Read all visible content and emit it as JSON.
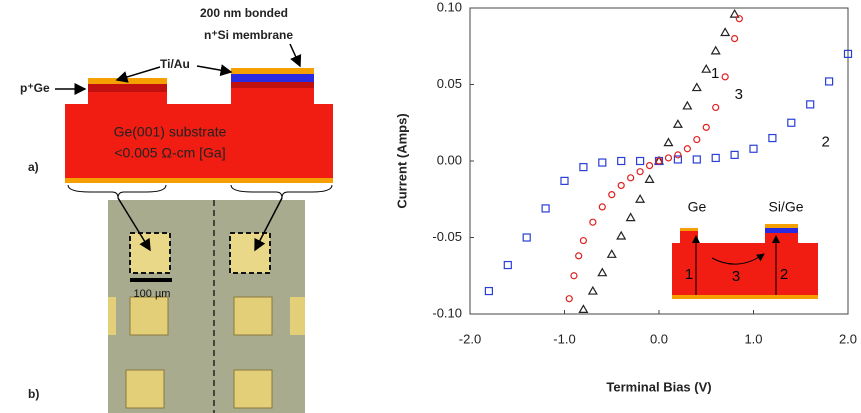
{
  "diagram": {
    "membrane_label": [
      "200 nm bonded",
      "n⁺Si membrane"
    ],
    "metal_label": "Ti/Au",
    "ge_label": "p⁺Ge",
    "substrate_label": [
      "Ge(001) substrate",
      "<0.005 Ω-cm [Ga]"
    ],
    "panel_a": "a)",
    "panel_b": "b)",
    "scale_bar": "100 µm"
  },
  "chart_data": {
    "type": "scatter",
    "xlabel": "Terminal Bias (V)",
    "ylabel": "Current (Amps)",
    "xlim": [
      -2.0,
      2.0
    ],
    "ylim": [
      -0.1,
      0.1
    ],
    "xticks": [
      {
        "value": -2.0,
        "label": "-2.0"
      },
      {
        "value": -1.0,
        "label": "-1.0"
      },
      {
        "value": 0,
        "label": "0.0"
      },
      {
        "value": 1.0,
        "label": "1.0"
      },
      {
        "value": 2.0,
        "label": "2.0"
      }
    ],
    "yticks": [
      {
        "value": -0.1,
        "label": "-0.10"
      },
      {
        "value": -0.05,
        "label": "-0.05"
      },
      {
        "value": 0,
        "label": "0.00"
      },
      {
        "value": 0.05,
        "label": "0.05"
      },
      {
        "value": 0.1,
        "label": "0.10"
      }
    ],
    "series": [
      {
        "color": "#222222",
        "marker": "triangle",
        "x": [
          -0.8,
          -0.7,
          -0.6,
          -0.5,
          -0.4,
          -0.3,
          -0.2,
          -0.1,
          0,
          0.1,
          0.2,
          0.3,
          0.4,
          0.5,
          0.6,
          0.7,
          0.8
        ],
        "values": [
          -0.097,
          -0.085,
          -0.073,
          -0.061,
          -0.049,
          -0.037,
          -0.025,
          -0.012,
          0,
          0.012,
          0.024,
          0.036,
          0.048,
          0.06,
          0.072,
          0.084,
          0.096
        ]
      },
      {
        "color": "#2a3fd6",
        "marker": "square",
        "x": [
          -1.8,
          -1.6,
          -1.4,
          -1.2,
          -1.0,
          -0.8,
          -0.6,
          -0.4,
          -0.2,
          0,
          0.2,
          0.4,
          0.6,
          0.8,
          1.0,
          1.2,
          1.4,
          1.6,
          1.8,
          2.0
        ],
        "values": [
          -0.085,
          -0.068,
          -0.05,
          -0.031,
          -0.013,
          -0.004,
          -0.001,
          0,
          0,
          0,
          0.001,
          0.001,
          0.002,
          0.004,
          0.008,
          0.015,
          0.025,
          0.037,
          0.052,
          0.07
        ]
      },
      {
        "color": "#e02020",
        "marker": "circle",
        "x": [
          -0.95,
          -0.9,
          -0.85,
          -0.8,
          -0.7,
          -0.6,
          -0.5,
          -0.4,
          -0.3,
          -0.2,
          -0.1,
          0,
          0.1,
          0.2,
          0.3,
          0.4,
          0.5,
          0.6,
          0.7,
          0.8,
          0.85
        ],
        "values": [
          -0.09,
          -0.075,
          -0.062,
          -0.052,
          -0.04,
          -0.03,
          -0.022,
          -0.016,
          -0.011,
          -0.007,
          -0.003,
          0,
          0.002,
          0.004,
          0.008,
          0.014,
          0.022,
          0.035,
          0.055,
          0.08,
          0.093
        ]
      }
    ],
    "annotations": [
      {
        "text": "1",
        "x": 0.55,
        "y": 0.057
      },
      {
        "text": "3",
        "x": 0.8,
        "y": 0.043
      },
      {
        "text": "2",
        "x": 1.72,
        "y": 0.012
      }
    ],
    "inset": {
      "labels": [
        "Ge",
        "Si/Ge",
        "1",
        "3",
        "2"
      ]
    }
  }
}
